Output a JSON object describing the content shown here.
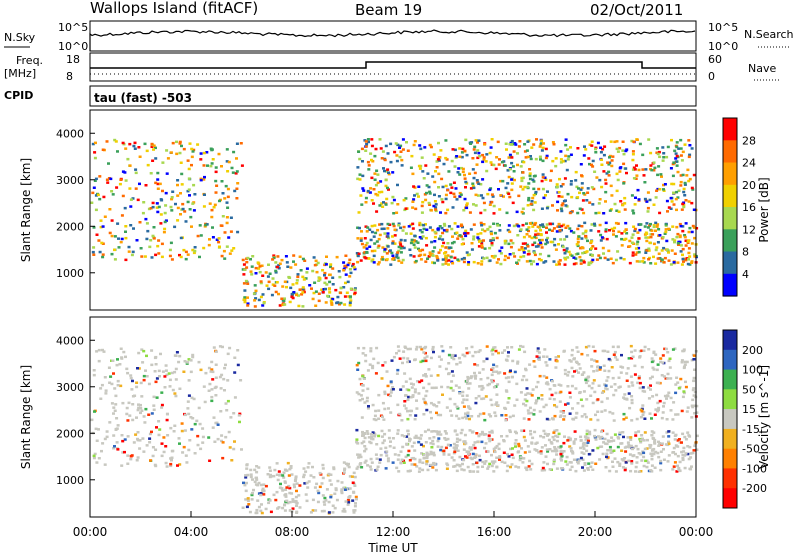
{
  "header": {
    "site": "Wallops Island (fitACF)",
    "beam": "Beam 19",
    "date": "02/Oct/2011"
  },
  "top_panels": {
    "nsky_label": "N.Sky",
    "nsky_ticks": [
      "10^5",
      "10^0"
    ],
    "nsearch_label": "N.Search",
    "nsearch_ticks": [
      "10^5",
      "10^0"
    ],
    "freq_label": "Freq.",
    "freq_unit": "[MHz]",
    "freq_ticks": [
      "18",
      "8"
    ],
    "nave_label": "Nave",
    "nave_ticks": [
      "60",
      "0"
    ],
    "cpid_label": "CPID",
    "cpid_text": "tau (fast) -503"
  },
  "chart_data": [
    {
      "type": "heatmap",
      "name": "power",
      "ylabel": "Slant Range [km]",
      "yticks": [
        "1000",
        "2000",
        "3000",
        "4000"
      ],
      "ylim": [
        200,
        4500
      ],
      "colorbar_label": "Power [dB]",
      "colorbar_ticks": [
        "28",
        "24",
        "20",
        "16",
        "12",
        "8",
        "4"
      ],
      "colorbar_colors": [
        "#ff0000",
        "#ff6a00",
        "#ff9f00",
        "#f0d000",
        "#a8d850",
        "#3aa05a",
        "#2a6aa0",
        "#0000ff"
      ],
      "echo_bands": [
        {
          "t_start": 0.0,
          "t_end": 6.0,
          "range_km": [
            1300,
            3900
          ],
          "power_db": [
            8,
            20
          ]
        },
        {
          "t_start": 6.0,
          "t_end": 10.5,
          "range_km": [
            300,
            1400
          ],
          "power_db": [
            8,
            28
          ]
        },
        {
          "t_start": 10.5,
          "t_end": 24.0,
          "range_km": [
            1200,
            2100
          ],
          "power_db": [
            16,
            30
          ]
        },
        {
          "t_start": 10.5,
          "t_end": 24.0,
          "range_km": [
            2300,
            3900
          ],
          "power_db": [
            8,
            20
          ]
        }
      ]
    },
    {
      "type": "heatmap",
      "name": "velocity",
      "ylabel": "Slant Range [km]",
      "yticks": [
        "1000",
        "2000",
        "3000",
        "4000"
      ],
      "ylim": [
        200,
        4500
      ],
      "xlabel": "Time UT",
      "xticks": [
        "00:00",
        "04:00",
        "08:00",
        "12:00",
        "16:00",
        "20:00",
        "00:00"
      ],
      "xlim": [
        0,
        24
      ],
      "colorbar_label": "Velocity [m s^-1]",
      "colorbar_ticks": [
        "200",
        "100",
        "50",
        "15",
        "-15",
        "-50",
        "-100",
        "-200"
      ],
      "colorbar_colors": [
        "#1a2aa0",
        "#2e66c0",
        "#3cb050",
        "#8edc40",
        "#c8c8c0",
        "#f0b020",
        "#ff8000",
        "#ff3000",
        "#ff0000"
      ],
      "echo_bands": [
        {
          "t_start": 0.0,
          "t_end": 6.0,
          "range_km": [
            1300,
            3900
          ],
          "velocity": [
            -15,
            15
          ]
        },
        {
          "t_start": 6.0,
          "t_end": 10.5,
          "range_km": [
            300,
            1400
          ],
          "velocity": [
            15,
            100
          ]
        },
        {
          "t_start": 10.5,
          "t_end": 24.0,
          "range_km": [
            1200,
            2100
          ],
          "velocity": [
            -15,
            15
          ]
        },
        {
          "t_start": 10.5,
          "t_end": 24.0,
          "range_km": [
            2300,
            3900
          ],
          "velocity": [
            -15,
            15
          ]
        }
      ]
    }
  ]
}
